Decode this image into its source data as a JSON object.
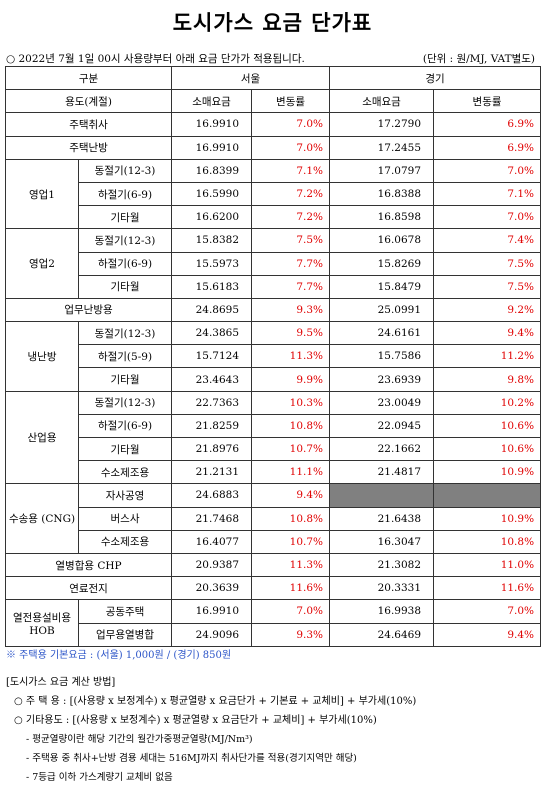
{
  "title": "도시가스 요금 단가표",
  "notice": "○ 2022년 7월 1일 00시 사용량부터 아래 요금 단가가 적용됩니다.",
  "unit": "(단위 : 원/MJ, VAT별도)",
  "header": {
    "category": "구분",
    "usage": "용도(계절)",
    "seoul": "서울",
    "gyeonggi": "경기",
    "retail": "소매요금",
    "change": "변동률"
  },
  "rows": [
    {
      "label": "주택취사",
      "seoul": "16.9910",
      "seoul_chg": "7.0%",
      "gg": "17.2790",
      "gg_chg": "6.9%"
    },
    {
      "label": "주택난방",
      "seoul": "16.9910",
      "seoul_chg": "7.0%",
      "gg": "17.2455",
      "gg_chg": "6.9%"
    },
    {
      "group": "영업1",
      "label": "동절기(12-3)",
      "seoul": "16.8399",
      "seoul_chg": "7.1%",
      "gg": "17.0797",
      "gg_chg": "7.0%"
    },
    {
      "label": "하절기(6-9)",
      "seoul": "16.5990",
      "seoul_chg": "7.2%",
      "gg": "16.8388",
      "gg_chg": "7.1%"
    },
    {
      "label": "기타월",
      "seoul": "16.6200",
      "seoul_chg": "7.2%",
      "gg": "16.8598",
      "gg_chg": "7.0%"
    },
    {
      "group": "영업2",
      "label": "동절기(12-3)",
      "seoul": "15.8382",
      "seoul_chg": "7.5%",
      "gg": "16.0678",
      "gg_chg": "7.4%"
    },
    {
      "label": "하절기(6-9)",
      "seoul": "15.5973",
      "seoul_chg": "7.7%",
      "gg": "15.8269",
      "gg_chg": "7.5%"
    },
    {
      "label": "기타월",
      "seoul": "15.6183",
      "seoul_chg": "7.7%",
      "gg": "15.8479",
      "gg_chg": "7.5%"
    },
    {
      "label": "업무난방용",
      "seoul": "24.8695",
      "seoul_chg": "9.3%",
      "gg": "25.0991",
      "gg_chg": "9.2%"
    },
    {
      "group": "냉난방",
      "label": "동절기(12-3)",
      "seoul": "24.3865",
      "seoul_chg": "9.5%",
      "gg": "24.6161",
      "gg_chg": "9.4%"
    },
    {
      "label": "하절기(5-9)",
      "seoul": "15.7124",
      "seoul_chg": "11.3%",
      "gg": "15.7586",
      "gg_chg": "11.2%"
    },
    {
      "label": "기타월",
      "seoul": "23.4643",
      "seoul_chg": "9.9%",
      "gg": "23.6939",
      "gg_chg": "9.8%"
    },
    {
      "group": "산업용",
      "label": "동절기(12-3)",
      "seoul": "22.7363",
      "seoul_chg": "10.3%",
      "gg": "23.0049",
      "gg_chg": "10.2%"
    },
    {
      "label": "하절기(6-9)",
      "seoul": "21.8259",
      "seoul_chg": "10.8%",
      "gg": "22.0945",
      "gg_chg": "10.6%"
    },
    {
      "label": "기타월",
      "seoul": "21.8976",
      "seoul_chg": "10.7%",
      "gg": "22.1662",
      "gg_chg": "10.6%"
    },
    {
      "label": "수소제조용",
      "seoul": "21.2131",
      "seoul_chg": "11.1%",
      "gg": "21.4817",
      "gg_chg": "10.9%"
    },
    {
      "group": "수송용 (CNG)",
      "label": "자사공영",
      "seoul": "24.6883",
      "seoul_chg": "9.4%",
      "gg": "",
      "gg_chg": ""
    },
    {
      "label": "버스사",
      "seoul": "21.7468",
      "seoul_chg": "10.8%",
      "gg": "21.6438",
      "gg_chg": "10.9%"
    },
    {
      "label": "수소제조용",
      "seoul": "16.4077",
      "seoul_chg": "10.7%",
      "gg": "16.3047",
      "gg_chg": "10.8%"
    },
    {
      "label": "열병합용 CHP",
      "seoul": "20.9387",
      "seoul_chg": "11.3%",
      "gg": "21.3082",
      "gg_chg": "11.0%"
    },
    {
      "label": "연료전지",
      "seoul": "20.3639",
      "seoul_chg": "11.6%",
      "gg": "20.3331",
      "gg_chg": "11.6%"
    },
    {
      "group": "열전용설비용 HOB",
      "label": "공동주택",
      "seoul": "16.9910",
      "seoul_chg": "7.0%",
      "gg": "16.9938",
      "gg_chg": "7.0%"
    },
    {
      "label": "업무용열병합",
      "seoul": "24.9096",
      "seoul_chg": "9.3%",
      "gg": "24.6469",
      "gg_chg": "9.4%"
    }
  ],
  "basic_fee_note": "※ 주택용 기본요금 : (서울) 1,000원 / (경기) 850원",
  "calc": {
    "heading": "[도시가스 요금 계산 방법]",
    "line1": "○ 주 택 용 : [(사용량 x 보정계수) x 평균열량 x 요금단가 + 기본료 + 교체비] + 부가세(10%)",
    "line2": "○ 기타용도 : [(사용량 x 보정계수) x 평균열량 x 요금단가 + 교체비] + 부가세(10%)",
    "line3": "- 평균열량이란 해당 기간의 월간가중평균열량(MJ/Nm³)",
    "line4": "- 주택용 중 취사+난방 겸용 세대는 516MJ까지 취사단가를 적용(경기지역만 해당)",
    "line5": "- 7등급 이하 가스계량기 교체비 없음"
  }
}
